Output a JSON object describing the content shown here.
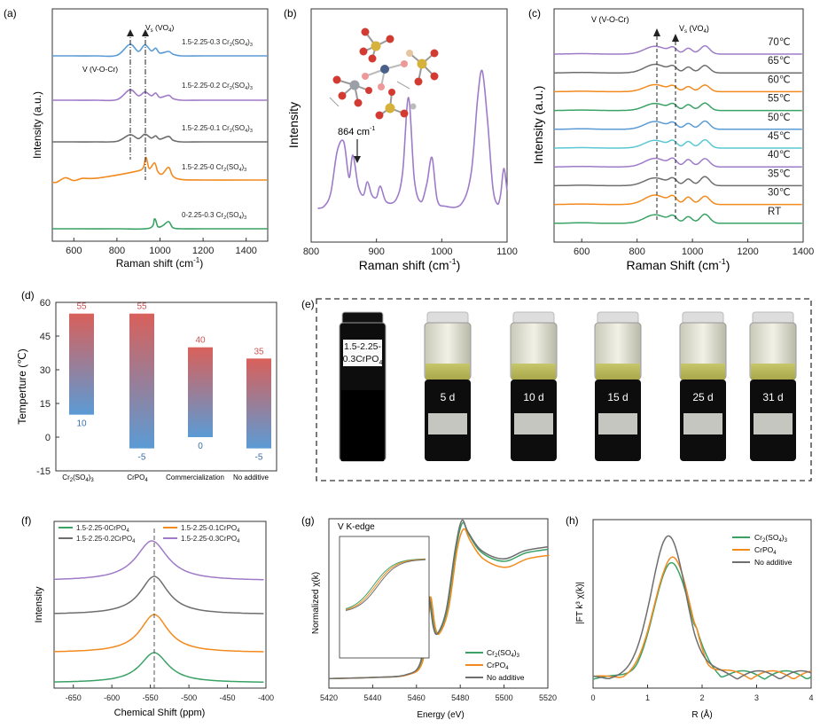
{
  "colors": {
    "blue": "#5b9bd5",
    "purple": "#a07ac8",
    "gray": "#6e6e6e",
    "orange": "#f28a1e",
    "green": "#3aa265",
    "cyan": "#5ac7d4",
    "violet": "#9e7bc9",
    "bar_top": "#d9605a",
    "bar_bottom": "#5b9bd5",
    "label_red": "#cc5555",
    "label_blue": "#3a6fb0"
  },
  "chart_data": [
    {
      "panel": "(a)",
      "type": "line",
      "xlabel": "Raman shift (cm-1)",
      "ylabel": "Intensity (a.u.)",
      "xlim": [
        500,
        1500
      ],
      "xticks": [
        600,
        800,
        1000,
        1200,
        1400
      ],
      "series": [
        {
          "name": "1.5-2.25-0.3 Cr2(SO4)3",
          "color": "blue",
          "x": [
            500,
            600,
            700,
            800,
            860,
            900,
            930,
            960,
            980,
            1000,
            1040,
            1060,
            1100,
            1200,
            1400,
            1500
          ],
          "y": [
            0.5,
            0.5,
            0.5,
            0.6,
            2.6,
            1.3,
            2.5,
            1.4,
            1.9,
            1.0,
            1.3,
            0.8,
            0.5,
            0.5,
            0.5,
            0.5
          ]
        },
        {
          "name": "1.5-2.25-0.2 Cr2(SO4)3",
          "color": "purple",
          "x": [
            500,
            600,
            700,
            800,
            860,
            900,
            930,
            960,
            980,
            1000,
            1040,
            1060,
            1100,
            1200,
            1400,
            1500
          ],
          "y": [
            0.5,
            0.5,
            0.5,
            0.6,
            2.4,
            1.3,
            2.0,
            1.3,
            1.8,
            1.0,
            1.4,
            0.8,
            0.5,
            0.5,
            0.5,
            0.5
          ]
        },
        {
          "name": "1.5-2.25-0.1 Cr2(SO4)3",
          "color": "gray",
          "x": [
            500,
            600,
            700,
            800,
            860,
            900,
            930,
            960,
            980,
            1000,
            1040,
            1060,
            1100,
            1200,
            1400,
            1500
          ],
          "y": [
            0.5,
            0.5,
            0.5,
            0.6,
            1.8,
            1.1,
            1.9,
            1.2,
            1.6,
            1.0,
            1.5,
            0.8,
            0.5,
            0.5,
            0.5,
            0.5
          ]
        },
        {
          "name": "1.5-2.25-0 Cr2(SO4)3",
          "color": "orange",
          "x": [
            500,
            520,
            560,
            600,
            640,
            700,
            800,
            880,
            920,
            935,
            950,
            975,
            990,
            1010,
            1040,
            1060,
            1100,
            1200,
            1400,
            1500
          ],
          "y": [
            0.1,
            0.1,
            0.9,
            0.4,
            0.8,
            0.8,
            1.4,
            2.0,
            2.6,
            4.6,
            2.6,
            3.6,
            2.0,
            1.6,
            2.8,
            1.2,
            0.6,
            0.5,
            0.5,
            0.5
          ]
        },
        {
          "name": "0-2.25-0.3 Cr2(SO4)3",
          "color": "green",
          "x": [
            500,
            600,
            800,
            950,
            975,
            990,
            1010,
            1040,
            1060,
            1100,
            1200,
            1400,
            1500
          ],
          "y": [
            0.5,
            0.5,
            0.5,
            0.6,
            2.3,
            0.9,
            1.0,
            1.8,
            0.7,
            0.5,
            0.5,
            0.5,
            0.5
          ]
        }
      ],
      "annotations": [
        "V (V-O-Cr)",
        "Vs (VO4)"
      ],
      "marker_lines": [
        860,
        930
      ]
    },
    {
      "panel": "(b)",
      "type": "line",
      "xlabel": "Raman shift (cm-1)",
      "ylabel": "Intensity",
      "xlim": [
        800,
        1100
      ],
      "xticks": [
        800,
        900,
        1000,
        1100
      ],
      "annotation": "864 cm-1",
      "annotation_x": 864,
      "series": [
        {
          "name": "",
          "color": "violet",
          "x": [
            810,
            820,
            830,
            840,
            850,
            858,
            864,
            872,
            880,
            886,
            893,
            900,
            906,
            915,
            930,
            940,
            949,
            958,
            968,
            977,
            985,
            993,
            1005,
            1030,
            1045,
            1055,
            1062,
            1070,
            1078,
            1085,
            1090,
            1095,
            1100
          ],
          "y": [
            0.2,
            0.3,
            0.9,
            2.8,
            3.2,
            1.6,
            2.6,
            1.2,
            0.8,
            1.4,
            0.8,
            0.7,
            1.2,
            0.5,
            0.6,
            1.8,
            5.2,
            1.5,
            0.5,
            1.3,
            2.5,
            0.6,
            0.3,
            0.4,
            1.8,
            5.2,
            6.4,
            4.2,
            1.2,
            0.4,
            0.8,
            2.0,
            1.0
          ]
        }
      ]
    },
    {
      "panel": "(c)",
      "type": "line",
      "xlabel": "Raman Shift (cm-1)",
      "ylabel": "Intensity (a.u.)",
      "xlim": [
        500,
        1400
      ],
      "xticks": [
        600,
        800,
        1000,
        1200,
        1400
      ],
      "annotations": [
        "V (V-O-Cr)",
        "Vs (VO4)"
      ],
      "marker_lines": [
        860,
        930
      ],
      "series": [
        {
          "name": "70℃",
          "color": "violet",
          "shape": [
            0.3,
            1.0,
            0.8,
            1.0
          ]
        },
        {
          "name": "65℃",
          "color": "gray",
          "shape": [
            0.3,
            1.1,
            0.8,
            0.9
          ]
        },
        {
          "name": "60℃",
          "color": "orange",
          "shape": [
            0.3,
            0.9,
            0.7,
            0.8
          ]
        },
        {
          "name": "55℃",
          "color": "green",
          "shape": [
            0.3,
            0.9,
            0.8,
            0.9
          ]
        },
        {
          "name": "50℃",
          "color": "blue",
          "shape": [
            0.3,
            1.0,
            0.8,
            1.0
          ]
        },
        {
          "name": "45℃",
          "color": "cyan",
          "shape": [
            0.3,
            1.0,
            0.9,
            1.0
          ]
        },
        {
          "name": "40℃",
          "color": "violet",
          "shape": [
            0.3,
            1.1,
            1.0,
            1.0
          ]
        },
        {
          "name": "35℃",
          "color": "gray",
          "shape": [
            0.3,
            1.0,
            0.9,
            1.1
          ]
        },
        {
          "name": "30℃",
          "color": "orange",
          "shape": [
            0.3,
            1.2,
            1.0,
            1.0
          ]
        },
        {
          "name": "RT",
          "color": "green",
          "shape": [
            0.3,
            1.1,
            0.9,
            1.1
          ]
        }
      ]
    },
    {
      "panel": "(d)",
      "type": "bar",
      "ylabel": "Temperture (℃)",
      "ylim": [
        -15,
        60
      ],
      "yticks": [
        -15,
        0,
        15,
        30,
        45,
        60
      ],
      "categories": [
        "Cr2(SO4)3",
        "CrPO4",
        "Commercialization",
        "No additive"
      ],
      "upper": [
        55,
        55,
        40,
        35
      ],
      "lower": [
        10,
        -5,
        0,
        -5
      ]
    },
    {
      "panel": "(f)",
      "type": "line",
      "xlabel": "Chemical Shift (ppm)",
      "ylabel": "Intensity",
      "xlim": [
        -675,
        -400
      ],
      "xticks": [
        -650,
        -600,
        -550,
        -500,
        -450,
        -400
      ],
      "marker_line": -545,
      "series": [
        {
          "name": "1.5-2.25-0CrPO4",
          "color": "green",
          "center": -545,
          "width": 22,
          "height": 1.0
        },
        {
          "name": "1.5-2.25-0.1CrPO4",
          "color": "orange",
          "center": -545,
          "width": 22,
          "height": 1.0
        },
        {
          "name": "1.5-2.25-0.2CrPO4",
          "color": "gray",
          "center": -545,
          "width": 22,
          "height": 1.0
        },
        {
          "name": "1.5-2.25-0.3CrPO4",
          "color": "purple",
          "center": -548,
          "width": 25,
          "height": 0.9
        }
      ]
    },
    {
      "panel": "(g)",
      "type": "line",
      "title": "V  K-edge",
      "xlabel": "Energy (eV)",
      "ylabel": "Normalized χ(k)",
      "xlim": [
        5420,
        5520
      ],
      "xticks": [
        5420,
        5440,
        5460,
        5480,
        5500,
        5520
      ],
      "series": [
        {
          "name": "Cr2(SO4)3",
          "color": "green"
        },
        {
          "name": "CrPO4",
          "color": "orange"
        },
        {
          "name": "No additive",
          "color": "gray"
        }
      ],
      "x": [
        5420,
        5440,
        5455,
        5462,
        5465,
        5466,
        5468,
        5470,
        5474,
        5478,
        5481,
        5484,
        5490,
        5500,
        5510,
        5520
      ],
      "y": [
        0.02,
        0.03,
        0.05,
        0.15,
        0.55,
        0.7,
        0.45,
        0.4,
        0.6,
        1.1,
        1.3,
        1.2,
        1.05,
        0.98,
        1.05,
        1.08
      ]
    },
    {
      "panel": "(h)",
      "type": "line",
      "xlabel": "R (Å)",
      "ylabel": "|FT k³ χ(k)|",
      "xlim": [
        0,
        4
      ],
      "xticks": [
        0,
        1,
        2,
        3,
        4
      ],
      "series": [
        {
          "name": "Cr2(SO4)3",
          "color": "green",
          "peak": 1.45,
          "height": 0.82
        },
        {
          "name": "CrPO4",
          "color": "orange",
          "peak": 1.45,
          "height": 0.86
        },
        {
          "name": "No additive",
          "color": "gray",
          "peak": 1.38,
          "height": 1.0
        }
      ]
    }
  ],
  "panels": {
    "a": {
      "label": "(a)",
      "xlabel": "Raman shift (cm",
      "xlabel_sup": "-1",
      "xlabel_end": ")",
      "ylabel": "Intensity (a.u.)",
      "xticks": [
        "600",
        "800",
        "1000",
        "1200",
        "1400"
      ],
      "ann_vocr": "V (V-O-Cr)",
      "ann_vs": "V",
      "ann_vs_sub": "s",
      "ann_vs_end": " (VO",
      "ann_vs_sub2": "4",
      "ann_vs_close": ")",
      "series_labels": [
        {
          "pre": "1.5-2.25-0.3 Cr",
          "s1": "2",
          "mid": "(SO",
          "s2": "4",
          "post": ")",
          "s3": "3"
        },
        {
          "pre": "1.5-2.25-0.2 Cr",
          "s1": "2",
          "mid": "(SO",
          "s2": "4",
          "post": ")",
          "s3": "3"
        },
        {
          "pre": "1.5-2.25-0.1 Cr",
          "s1": "2",
          "mid": "(SO",
          "s2": "4",
          "post": ")",
          "s3": "3"
        },
        {
          "pre": "1.5-2.25-0 Cr",
          "s1": "2",
          "mid": "(SO",
          "s2": "4",
          "post": ")",
          "s3": "3"
        },
        {
          "pre": "0-2.25-0.3 Cr",
          "s1": "2",
          "mid": "(SO",
          "s2": "4",
          "post": ")",
          "s3": "3"
        }
      ]
    },
    "b": {
      "label": "(b)",
      "xlabel": "Raman shift (cm",
      "xlabel_sup": "-1",
      "xlabel_end": ")",
      "ylabel": "Intensity",
      "xticks": [
        "800",
        "900",
        "1000",
        "1100"
      ],
      "peak_label": "864 cm",
      "peak_sup": "-1"
    },
    "c": {
      "label": "(c)",
      "xlabel": "Raman Shift (cm",
      "xlabel_sup": "-1",
      "xlabel_end": ")",
      "ylabel": "Intensity (a.u.)",
      "xticks": [
        "600",
        "800",
        "1000",
        "1200",
        "1400"
      ],
      "ann_vocr": "V (V-O-Cr)",
      "ann_vs": "V",
      "ann_vs_sub": "s",
      "ann_vs_end": " (VO",
      "ann_vs_sub2": "4",
      "ann_vs_close": ")"
    },
    "d": {
      "label": "(d)",
      "ylabel": "Temperture (℃)",
      "yticks": [
        "60",
        "45",
        "30",
        "15",
        "0",
        "-15"
      ],
      "cat1_pre": "Cr",
      "cat1_s1": "2",
      "cat1_mid": "(SO",
      "cat1_s2": "4",
      "cat1_post": ")",
      "cat1_s3": "3",
      "cat2_pre": "CrPO",
      "cat2_s": "4",
      "cat3": "Commercialization",
      "cat4": "No additive"
    },
    "e": {
      "label": "(e)",
      "vial_label": "1.5-2.25-",
      "vial_label2": "0.3CrPO",
      "vial_label2_sub": "4",
      "days": [
        "5 d",
        "10 d",
        "15 d",
        "25 d",
        "31 d"
      ]
    },
    "f": {
      "label": "(f)",
      "xlabel": "Chemical Shift (ppm)",
      "ylabel": "Intensity",
      "xticks": [
        "-650",
        "-600",
        "-550",
        "-500",
        "-450",
        "-400"
      ]
    },
    "g": {
      "label": "(g)",
      "title": "V  K-edge",
      "xlabel": "Energy (eV)",
      "ylabel": "Normalized χ(k)",
      "xticks": [
        "5420",
        "5440",
        "5460",
        "5480",
        "5500",
        "5520"
      ],
      "leg1_pre": "Cr",
      "leg1_s1": "2",
      "leg1_mid": "(SO",
      "leg1_s2": "4",
      "leg1_post": ")",
      "leg1_s3": "3",
      "leg2_pre": "CrPO",
      "leg2_s": "4",
      "leg3": "No additive"
    },
    "h": {
      "label": "(h)",
      "xlabel": "R (Å)",
      "ylabel": "|FT k³ χ(k)|",
      "xticks": [
        "0",
        "1",
        "2",
        "3",
        "4"
      ],
      "leg1_pre": "Cr",
      "leg1_s1": "2",
      "leg1_mid": "(SO",
      "leg1_s2": "4",
      "leg1_post": ")",
      "leg1_s3": "3",
      "leg2_pre": "CrPO",
      "leg2_s": "4",
      "leg3": "No additive"
    },
    "f_legend": [
      {
        "pre": "1.5-2.25-0CrPO",
        "s": "4"
      },
      {
        "pre": "1.5-2.25-0.1CrPO",
        "s": "4"
      },
      {
        "pre": "1.5-2.25-0.2CrPO",
        "s": "4"
      },
      {
        "pre": "1.5-2.25-0.3CrPO",
        "s": "4"
      }
    ]
  }
}
